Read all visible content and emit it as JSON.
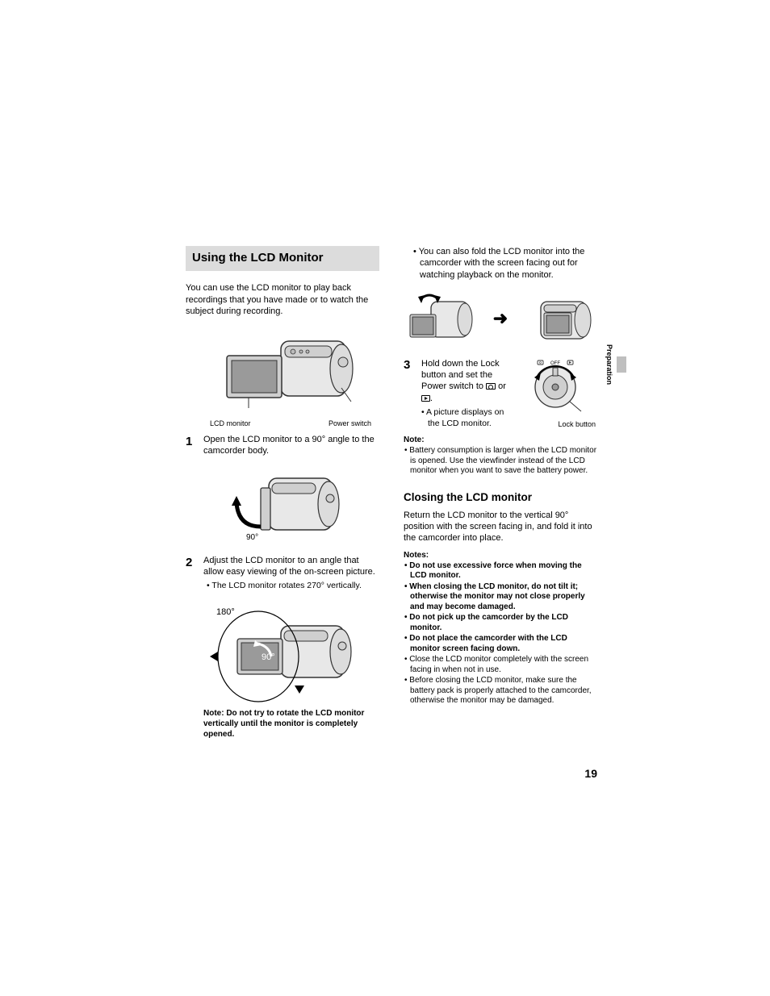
{
  "sideTab": "Preparation",
  "pageNumber": "19",
  "left": {
    "sectionTitle": "Using the LCD Monitor",
    "intro": "You can use the LCD monitor to play back recordings that you have made or to watch the subject during recording.",
    "fig1": {
      "label_left": "LCD monitor",
      "label_right": "Power switch",
      "svg_bg": "#f0f0f0",
      "svg_stroke": "#444"
    },
    "step1": {
      "num": "1",
      "text": "Open the LCD monitor to a 90° angle to the camcorder body.",
      "angle_label": "90°"
    },
    "step2": {
      "num": "2",
      "text": "Adjust the LCD monitor to an angle that allow easy viewing of the on-screen picture.",
      "sub": "• The LCD monitor rotates 270° vertically.",
      "angle_a": "180°",
      "angle_b": "90°",
      "note": "Note: Do not try to rotate the LCD monitor vertically until the monitor is completely opened."
    }
  },
  "right": {
    "bullet1": "• You can also fold the LCD monitor into the camcorder with the screen facing out for watching playback on the monitor.",
    "arrow": "➜",
    "step3": {
      "num": "3",
      "text_a": "Hold down the Lock button and set the Power switch to ",
      "text_b": " or ",
      "text_c": ".",
      "sub": "• A picture displays on the LCD monitor.",
      "lock_label": "Lock button",
      "dial_label": "OFF"
    },
    "note1_head": "Note:",
    "note1_items": [
      "• Battery consumption is larger when the LCD monitor is opened. Use the viewfinder instead of the LCD monitor when you want to save the battery power."
    ],
    "subsection": "Closing the LCD monitor",
    "closing_intro": "Return the LCD monitor to the vertical 90° position with the screen facing in, and fold it into the camcorder into place.",
    "notes_head": "Notes:",
    "notes_items": [
      {
        "bold": true,
        "text": "• Do not use excessive force when moving the LCD monitor."
      },
      {
        "bold": true,
        "text": "• When closing the LCD monitor, do not tilt it; otherwise the monitor may not close properly and may become damaged."
      },
      {
        "bold": true,
        "text": "• Do not pick up the camcorder by the LCD monitor."
      },
      {
        "bold": true,
        "text": "• Do not place the camcorder with the LCD monitor screen facing down."
      },
      {
        "bold": false,
        "text": "• Close the LCD monitor completely with the screen facing in when not in use."
      },
      {
        "bold": false,
        "text": "• Before closing the LCD monitor, make sure the battery pack is properly attached to the camcorder, otherwise the monitor may be damaged."
      }
    ]
  },
  "camcorder_svg": {
    "body_fill": "#e8e8e8",
    "body_stroke": "#333",
    "screen_fill": "#9a9a9a",
    "detail_fill": "#cfcfcf"
  }
}
